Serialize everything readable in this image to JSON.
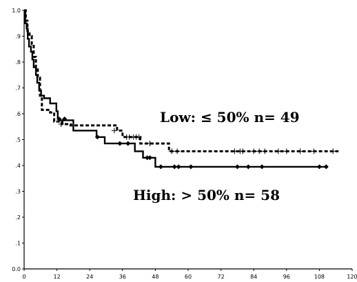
{
  "chart_data": {
    "type": "line",
    "step": true,
    "xlim": [
      0,
      120
    ],
    "ylim": [
      0,
      1.0
    ],
    "x_ticks": [
      0,
      12,
      24,
      36,
      48,
      60,
      72,
      84,
      96,
      108,
      120
    ],
    "y_ticks": [
      0,
      0.1,
      0.2,
      0.3,
      0.4,
      0.5,
      0.6,
      0.7,
      0.8,
      0.9,
      1.0
    ],
    "x_tick_labels": [
      "0",
      "12",
      "24",
      "36",
      "48",
      "60",
      "72",
      "84",
      "96",
      "108",
      "120"
    ],
    "y_tick_labels": [
      "0.0",
      ".1",
      ".2",
      ".3",
      ".4",
      ".5",
      ".6",
      ".7",
      ".8",
      ".9",
      "1.0"
    ],
    "grid": false,
    "annotations": {
      "low": "Low: ≤ 50% n= 49",
      "high": "High: > 50% n= 58"
    },
    "series": [
      {
        "line_style": "solid",
        "censor_marker": "diamond",
        "color": "#000000",
        "steps": [
          [
            0,
            1.0
          ],
          [
            0.4,
            0.95
          ],
          [
            0.9,
            0.93
          ],
          [
            1.3,
            0.89
          ],
          [
            1.8,
            0.86
          ],
          [
            2.5,
            0.84
          ],
          [
            3.0,
            0.81
          ],
          [
            3.5,
            0.78
          ],
          [
            4.3,
            0.75
          ],
          [
            4.8,
            0.72
          ],
          [
            5.5,
            0.69
          ],
          [
            6.2,
            0.67
          ],
          [
            7.3,
            0.66
          ],
          [
            9.5,
            0.64
          ],
          [
            11.8,
            0.61
          ],
          [
            12.3,
            0.58
          ],
          [
            13.2,
            0.575
          ],
          [
            18.0,
            0.535
          ],
          [
            26.5,
            0.51
          ],
          [
            29.5,
            0.485
          ],
          [
            40.5,
            0.455
          ],
          [
            43.5,
            0.43
          ],
          [
            48.0,
            0.395
          ],
          [
            110.5,
            0.395
          ]
        ],
        "censored": [
          [
            12.8,
            0.58
          ],
          [
            14.8,
            0.58
          ],
          [
            26.8,
            0.51
          ],
          [
            35.0,
            0.485
          ],
          [
            38.0,
            0.485
          ],
          [
            45.0,
            0.43
          ],
          [
            46.0,
            0.43
          ],
          [
            50.0,
            0.395
          ],
          [
            55.0,
            0.395
          ],
          [
            56.5,
            0.395
          ],
          [
            61.0,
            0.395
          ],
          [
            78.0,
            0.395
          ],
          [
            82.0,
            0.395
          ],
          [
            87.0,
            0.395
          ],
          [
            108.0,
            0.395
          ],
          [
            110.5,
            0.395
          ]
        ]
      },
      {
        "line_style": "dotted",
        "censor_marker": "plus",
        "color": "#000000",
        "steps": [
          [
            0,
            1.0
          ],
          [
            0.6,
            0.96
          ],
          [
            1.2,
            0.92
          ],
          [
            2.0,
            0.9
          ],
          [
            2.8,
            0.87
          ],
          [
            3.5,
            0.82
          ],
          [
            4.3,
            0.78
          ],
          [
            5.0,
            0.74
          ],
          [
            5.8,
            0.67
          ],
          [
            6.5,
            0.615
          ],
          [
            9.5,
            0.605
          ],
          [
            11.0,
            0.57
          ],
          [
            14.0,
            0.56
          ],
          [
            17.0,
            0.555
          ],
          [
            34.0,
            0.535
          ],
          [
            36.0,
            0.51
          ],
          [
            42.5,
            0.485
          ],
          [
            53.0,
            0.455
          ],
          [
            115.0,
            0.455
          ]
        ],
        "censored": [
          [
            13.5,
            0.56
          ],
          [
            33.0,
            0.535
          ],
          [
            37.5,
            0.51
          ],
          [
            38.5,
            0.51
          ],
          [
            40.0,
            0.51
          ],
          [
            41.0,
            0.51
          ],
          [
            42.0,
            0.51
          ],
          [
            46.0,
            0.485
          ],
          [
            54.0,
            0.455
          ],
          [
            56.0,
            0.455
          ],
          [
            77.0,
            0.455
          ],
          [
            79.0,
            0.455
          ],
          [
            80.0,
            0.455
          ],
          [
            84.0,
            0.455
          ],
          [
            86.0,
            0.455
          ],
          [
            88.0,
            0.455
          ],
          [
            93.0,
            0.455
          ],
          [
            96.0,
            0.455
          ],
          [
            101.0,
            0.455
          ],
          [
            106.0,
            0.455
          ],
          [
            113.0,
            0.455
          ]
        ]
      }
    ]
  }
}
